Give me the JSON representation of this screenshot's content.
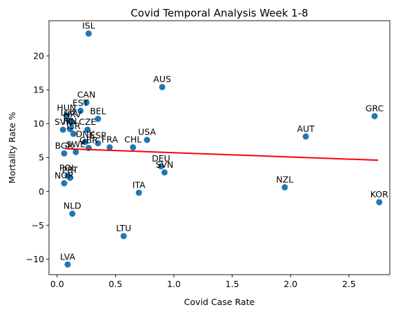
{
  "chart_data": {
    "type": "scatter",
    "title": "Covid Temporal Analysis Week 1-8",
    "xlabel": "Covid Case Rate",
    "ylabel": "Mortality Rate %",
    "xlim": [
      -0.07,
      2.85
    ],
    "ylim": [
      -12.3,
      25.2
    ],
    "xticks": [
      0.0,
      0.5,
      1.0,
      1.5,
      2.0,
      2.5
    ],
    "xtick_labels": [
      "0.0",
      "0.5",
      "1.0",
      "1.5",
      "2.0",
      "2.5"
    ],
    "yticks": [
      -10,
      -5,
      0,
      5,
      10,
      15,
      20
    ],
    "ytick_labels": [
      "−10",
      "−5",
      "0",
      "5",
      "10",
      "15",
      "20"
    ],
    "grid": false,
    "point_color": "#1f77b4",
    "trend_color": "#ff0000",
    "trend_line": {
      "x": [
        0.07,
        2.75
      ],
      "y": [
        6.3,
        4.6
      ]
    },
    "points": [
      {
        "label": "ISL",
        "x": 0.27,
        "y": 23.3
      },
      {
        "label": "AUS",
        "x": 0.9,
        "y": 15.4
      },
      {
        "label": "CAN",
        "x": 0.25,
        "y": 13.1
      },
      {
        "label": "EST",
        "x": 0.2,
        "y": 11.9
      },
      {
        "label": "HUN",
        "x": 0.08,
        "y": 11.2
      },
      {
        "label": "LUX",
        "x": 0.1,
        "y": 10.5
      },
      {
        "label": "HRV",
        "x": 0.13,
        "y": 10.2
      },
      {
        "label": "BEL",
        "x": 0.35,
        "y": 10.7
      },
      {
        "label": "SVK",
        "x": 0.05,
        "y": 9.1
      },
      {
        "label": "FIN",
        "x": 0.11,
        "y": 9.2
      },
      {
        "label": "CZE",
        "x": 0.26,
        "y": 9.1
      },
      {
        "label": "ISR",
        "x": 0.14,
        "y": 8.5
      },
      {
        "label": "DNK",
        "x": 0.24,
        "y": 7.3
      },
      {
        "label": "GBR",
        "x": 0.27,
        "y": 6.4
      },
      {
        "label": "ESP",
        "x": 0.35,
        "y": 7.1
      },
      {
        "label": "FRA",
        "x": 0.45,
        "y": 6.5
      },
      {
        "label": "CHL",
        "x": 0.65,
        "y": 6.5
      },
      {
        "label": "USA",
        "x": 0.77,
        "y": 7.6
      },
      {
        "label": "BGR",
        "x": 0.06,
        "y": 5.6
      },
      {
        "label": "SWE",
        "x": 0.16,
        "y": 5.8
      },
      {
        "label": "DEU",
        "x": 0.89,
        "y": 3.7
      },
      {
        "label": "SVN",
        "x": 0.92,
        "y": 2.8
      },
      {
        "label": "POL",
        "x": 0.09,
        "y": 2.3
      },
      {
        "label": "PRT",
        "x": 0.11,
        "y": 2.0
      },
      {
        "label": "NOR",
        "x": 0.06,
        "y": 1.2
      },
      {
        "label": "ITA",
        "x": 0.7,
        "y": -0.2
      },
      {
        "label": "NZL",
        "x": 1.95,
        "y": 0.6
      },
      {
        "label": "AUT",
        "x": 2.13,
        "y": 8.1
      },
      {
        "label": "GRC",
        "x": 2.72,
        "y": 11.1
      },
      {
        "label": "KOR",
        "x": 2.76,
        "y": -1.6
      },
      {
        "label": "NLD",
        "x": 0.13,
        "y": -3.3
      },
      {
        "label": "LTU",
        "x": 0.57,
        "y": -6.6
      },
      {
        "label": "LVA",
        "x": 0.09,
        "y": -10.8
      }
    ]
  }
}
